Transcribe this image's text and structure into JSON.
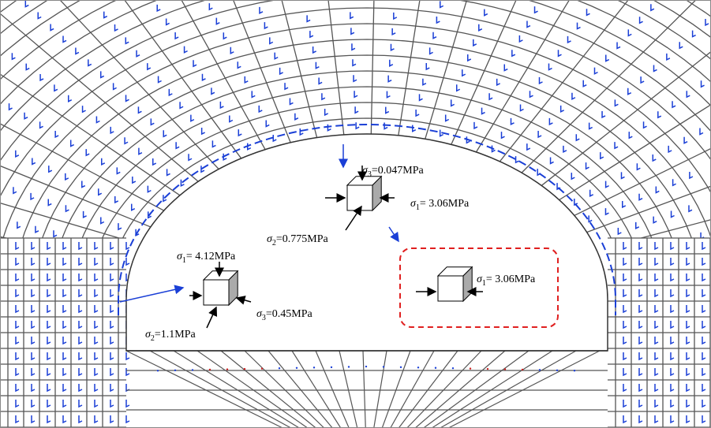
{
  "labels": [
    {
      "symbol": "σ",
      "sub": "3",
      "text": "=0.047MPa"
    },
    {
      "symbol": "σ",
      "sub": "1",
      "text": "= 3.06MPa"
    },
    {
      "symbol": "σ",
      "sub": "2",
      "text": "=0.775MPa"
    },
    {
      "symbol": "σ",
      "sub": "1",
      "text": "= 4.12MPa"
    },
    {
      "symbol": "σ",
      "sub": "2",
      "text": "=1.1MPa"
    },
    {
      "symbol": "σ",
      "sub": "3",
      "text": "=0.45MPa"
    },
    {
      "symbol": "σ",
      "sub": "1",
      "text": "= 3.06MPa"
    }
  ]
}
